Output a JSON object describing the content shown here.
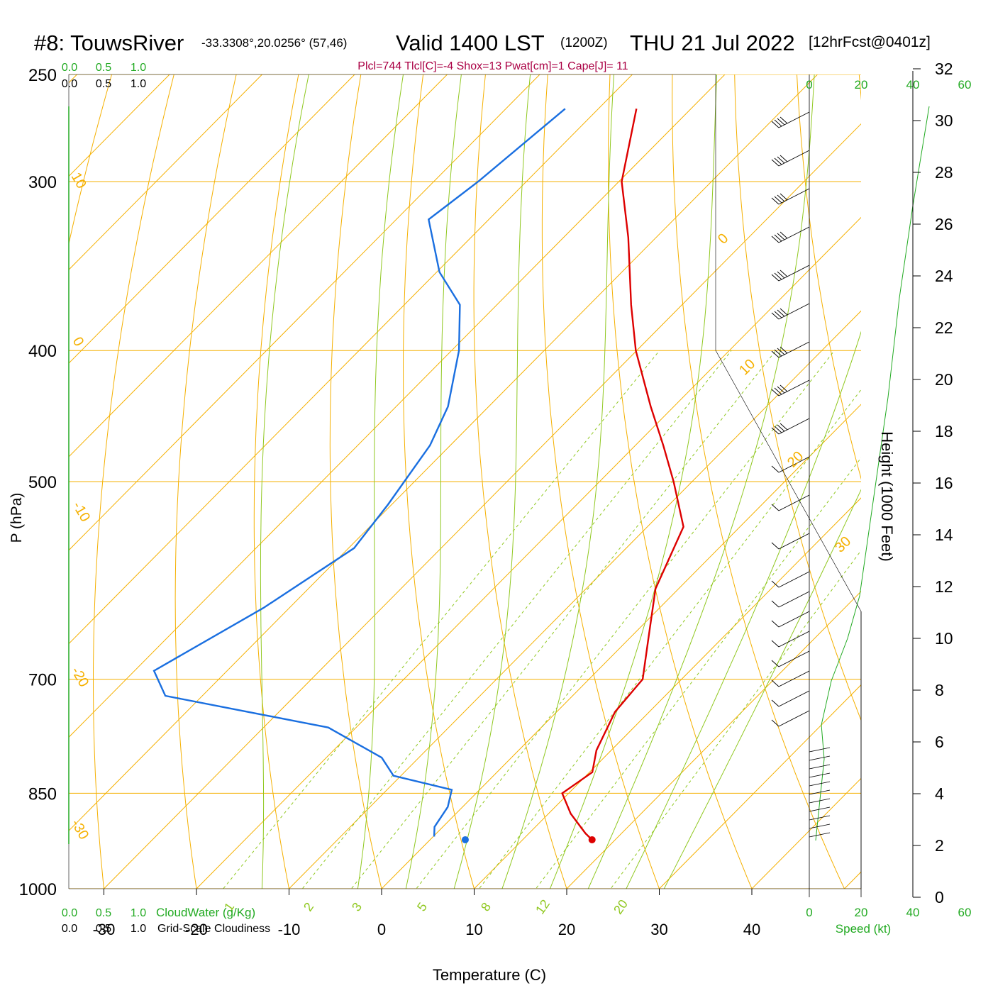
{
  "header": {
    "station": "#8: TouwsRiver",
    "coords": "-33.3308°,20.0256° (57,46)",
    "valid": "Valid 1400 LST",
    "zulu": "(1200Z)",
    "date": "THU 21 Jul 2022",
    "forecast": "[12hrFcst@0401z]",
    "indices": "Plcl=744 Tlcl[C]=-4 Shox=13 Pwat[cm]=1 Cape[J]= 11"
  },
  "colors": {
    "temperature": "#dd0000",
    "dewpoint": "#1a6fe0",
    "isotherm_isobar": "#f5b000",
    "dry_adiabat": "#f5b000",
    "moist_adiabat": "#90c820",
    "mixing_ratio": "#90c820",
    "green_label": "#22aa22",
    "index_text": "#aa0044"
  },
  "chart_data": {
    "type": "skew-t",
    "xlabel": "Temperature (C)",
    "ylabel": "P (hPa)",
    "x_ticks": [
      -30,
      -20,
      -10,
      0,
      10,
      20,
      30,
      40
    ],
    "p_ticks": [
      250,
      300,
      400,
      500,
      700,
      850,
      1000
    ],
    "temperature_profile": [
      {
        "p": 265,
        "t": -55.9
      },
      {
        "p": 300,
        "t": -49.7
      },
      {
        "p": 330,
        "t": -43.0
      },
      {
        "p": 370,
        "t": -35.5
      },
      {
        "p": 400,
        "t": -30.1
      },
      {
        "p": 440,
        "t": -22.5
      },
      {
        "p": 470,
        "t": -17.0
      },
      {
        "p": 500,
        "t": -12.0
      },
      {
        "p": 540,
        "t": -6.1
      },
      {
        "p": 600,
        "t": -2.5
      },
      {
        "p": 650,
        "t": 1.8
      },
      {
        "p": 700,
        "t": 5.8
      },
      {
        "p": 740,
        "t": 6.3
      },
      {
        "p": 790,
        "t": 8.4
      },
      {
        "p": 820,
        "t": 10.3
      },
      {
        "p": 850,
        "t": 9.3
      },
      {
        "p": 880,
        "t": 12.4
      },
      {
        "p": 910,
        "t": 16.1
      },
      {
        "p": 920,
        "t": 17.5
      }
    ],
    "dewpoint_profile": [
      {
        "p": 265,
        "d": -63.6
      },
      {
        "p": 300,
        "d": -65.2
      },
      {
        "p": 320,
        "d": -66.5
      },
      {
        "p": 350,
        "d": -59.7
      },
      {
        "p": 370,
        "d": -54.0
      },
      {
        "p": 400,
        "d": -49.2
      },
      {
        "p": 440,
        "d": -44.4
      },
      {
        "p": 470,
        "d": -42.2
      },
      {
        "p": 520,
        "d": -40.4
      },
      {
        "p": 560,
        "d": -39.4
      },
      {
        "p": 620,
        "d": -42.8
      },
      {
        "p": 690,
        "d": -47.9
      },
      {
        "p": 720,
        "d": -44.0
      },
      {
        "p": 760,
        "d": -23.0
      },
      {
        "p": 800,
        "d": -14.0
      },
      {
        "p": 825,
        "d": -10.8
      },
      {
        "p": 845,
        "d": -3.0
      },
      {
        "p": 870,
        "d": -1.6
      },
      {
        "p": 900,
        "d": -0.9
      },
      {
        "p": 915,
        "d": 0.1
      }
    ],
    "surface_markers": {
      "temperature": 17.5,
      "dewpoint": 3.8,
      "pressure": 920
    },
    "dry_adiabat_labels": [
      "10",
      "0",
      "-10",
      "-20",
      "-30",
      "0",
      "10",
      "20",
      "30"
    ],
    "mixing_ratio_labels": [
      "1",
      "2",
      "3",
      "5",
      "8",
      "12",
      "20"
    ],
    "height_axis": {
      "title": "Height (1000 Feet)",
      "ticks": [
        "0",
        "2",
        "4",
        "6",
        "8",
        "10",
        "12",
        "14",
        "16",
        "18",
        "20",
        "22",
        "24",
        "26",
        "28",
        "30",
        "32"
      ]
    },
    "speed_axis": {
      "title": "Speed (kt)",
      "top_ticks": [
        "0",
        "20",
        "40",
        "60"
      ],
      "bottom_ticks": [
        "0",
        "20",
        "40",
        "60"
      ]
    },
    "cloud_scales": {
      "cloudwater_title": "CloudWater (g/Kg)",
      "cloudiness_title": "Grid-Scale Cloudiness",
      "ticks": [
        "0.0",
        "0.5",
        "1.0"
      ]
    }
  }
}
